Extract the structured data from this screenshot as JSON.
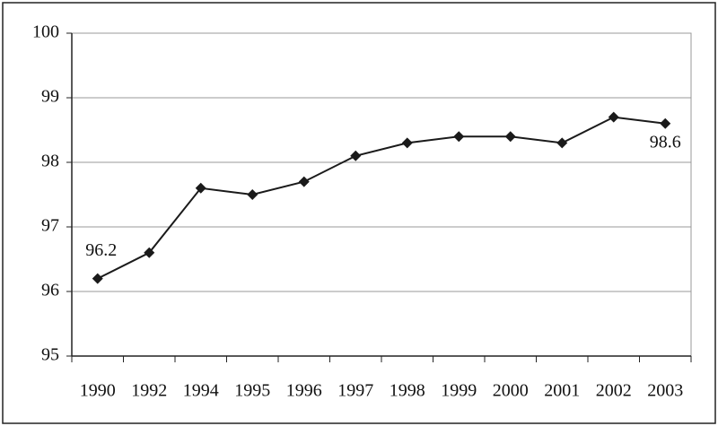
{
  "chart_data": {
    "type": "line",
    "categories": [
      "1990",
      "1992",
      "1994",
      "1995",
      "1996",
      "1997",
      "1998",
      "1999",
      "2000",
      "2001",
      "2002",
      "2003"
    ],
    "values": [
      96.2,
      96.6,
      97.6,
      97.5,
      97.7,
      98.1,
      98.3,
      98.4,
      98.4,
      98.3,
      98.7,
      98.6
    ],
    "color": "#1a1a1a",
    "ylim": [
      95,
      100
    ],
    "yticks": [
      95,
      96,
      97,
      98,
      99,
      100
    ],
    "grid": true,
    "labeled_points": [
      0,
      11
    ]
  }
}
